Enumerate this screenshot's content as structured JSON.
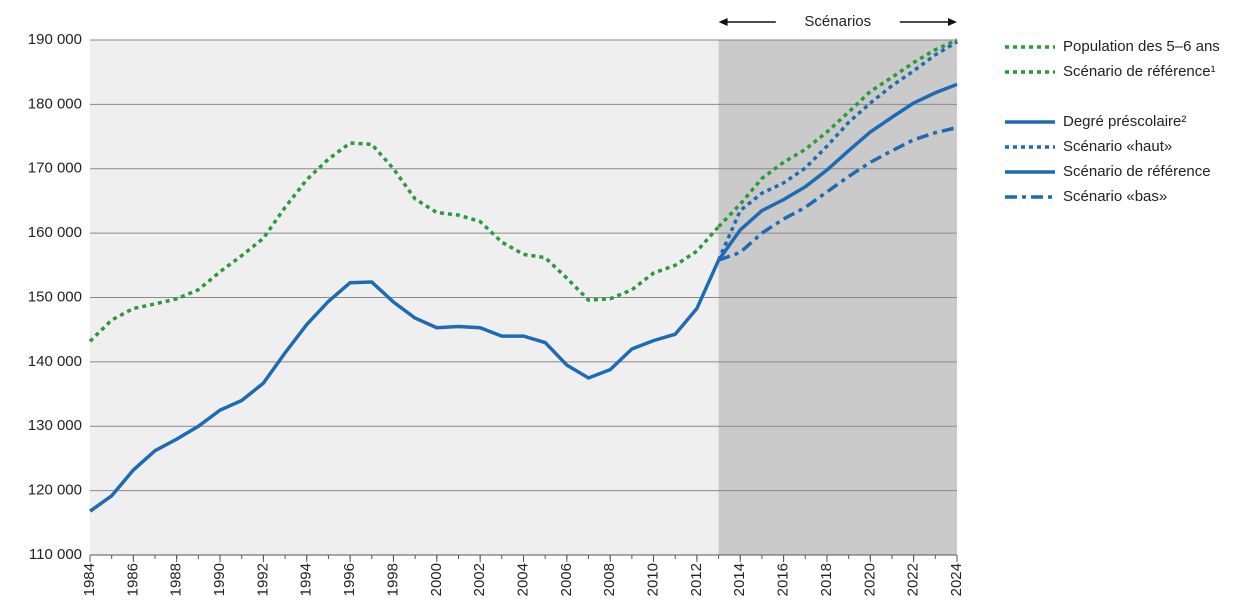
{
  "chart_data": {
    "type": "line",
    "annotation": "Scénarios",
    "shade_from": 2013,
    "xlim": [
      1984,
      2024
    ],
    "xticks": [
      1984,
      1986,
      1988,
      1990,
      1992,
      1994,
      1996,
      1998,
      2000,
      2002,
      2004,
      2006,
      2008,
      2010,
      2012,
      2014,
      2016,
      2018,
      2020,
      2022,
      2024
    ],
    "ylim": [
      110000,
      190000
    ],
    "yticks": [
      {
        "value": 110000,
        "label": "110 000"
      },
      {
        "value": 120000,
        "label": "120 000"
      },
      {
        "value": 130000,
        "label": "130 000"
      },
      {
        "value": 140000,
        "label": "140 000"
      },
      {
        "value": 150000,
        "label": "150 000"
      },
      {
        "value": 160000,
        "label": "160 000"
      },
      {
        "value": 170000,
        "label": "170 000"
      },
      {
        "value": 180000,
        "label": "180 000"
      },
      {
        "value": 190000,
        "label": "190 000"
      }
    ],
    "grid": true,
    "legend": "right",
    "series": [
      {
        "name": "Population des 5–6 ans",
        "color": "#2a9a3a",
        "dash": "dot",
        "x": [
          1984,
          1985,
          1986,
          1987,
          1988,
          1989,
          1990,
          1991,
          1992,
          1993,
          1994,
          1995,
          1996,
          1997,
          1998,
          1999,
          2000,
          2001,
          2002,
          2003,
          2004,
          2005,
          2006,
          2007,
          2008,
          2009,
          2010,
          2011,
          2012,
          2013
        ],
        "values": [
          143200,
          146500,
          148300,
          149000,
          149800,
          151200,
          154000,
          156500,
          159200,
          164000,
          168300,
          171500,
          174000,
          173800,
          170000,
          165300,
          163200,
          162800,
          161800,
          158600,
          156700,
          156200,
          153000,
          149600,
          149800,
          151200,
          153800,
          155000,
          157200,
          161000
        ]
      },
      {
        "name": "Scénario de référence¹",
        "color": "#2a9a3a",
        "dash": "dot",
        "x": [
          2013,
          2014,
          2015,
          2016,
          2017,
          2018,
          2019,
          2020,
          2021,
          2022,
          2023,
          2024
        ],
        "values": [
          161000,
          164500,
          168500,
          171000,
          173000,
          175700,
          178800,
          182000,
          184200,
          186500,
          188500,
          190000
        ]
      },
      {
        "name": "Degré préscolaire²",
        "color": "#1f6bb3",
        "dash": "solid",
        "x": [
          1984,
          1985,
          1986,
          1987,
          1988,
          1989,
          1990,
          1991,
          1992,
          1993,
          1994,
          1995,
          1996,
          1997,
          1998,
          1999,
          2000,
          2001,
          2002,
          2003,
          2004,
          2005,
          2006,
          2007,
          2008,
          2009,
          2010,
          2011,
          2012,
          2013
        ],
        "values": [
          116800,
          119200,
          123200,
          126200,
          128000,
          130000,
          132500,
          134000,
          136700,
          141400,
          145800,
          149400,
          152300,
          152400,
          149300,
          146800,
          145300,
          145500,
          145300,
          144000,
          144000,
          143000,
          139500,
          137500,
          138800,
          142000,
          143300,
          144300,
          148300,
          155800
        ]
      },
      {
        "name": "Scénario «haut»",
        "color": "#1f6bb3",
        "dash": "dot",
        "x": [
          2013,
          2014,
          2015,
          2016,
          2017,
          2018,
          2019,
          2020,
          2021,
          2022,
          2023,
          2024
        ],
        "values": [
          155800,
          163500,
          166200,
          167800,
          170100,
          173500,
          177200,
          180200,
          182900,
          185200,
          187700,
          189700
        ]
      },
      {
        "name": "Scénario de référence",
        "color": "#1f6bb3",
        "dash": "solid",
        "x": [
          2013,
          2014,
          2015,
          2016,
          2017,
          2018,
          2019,
          2020,
          2021,
          2022,
          2023,
          2024
        ],
        "values": [
          155800,
          160500,
          163500,
          165200,
          167200,
          169800,
          172800,
          175700,
          178000,
          180200,
          181800,
          183100
        ]
      },
      {
        "name": "Scénario «bas»",
        "color": "#1f6bb3",
        "dash": "dashdot",
        "x": [
          2013,
          2014,
          2015,
          2016,
          2017,
          2018,
          2019,
          2020,
          2021,
          2022,
          2023,
          2024
        ],
        "values": [
          155800,
          157000,
          160000,
          162200,
          164000,
          166400,
          168800,
          171000,
          172800,
          174500,
          175600,
          176400
        ]
      }
    ]
  }
}
